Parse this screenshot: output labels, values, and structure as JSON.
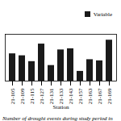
{
  "chart_data": {
    "type": "bar",
    "xlabel": "Station",
    "caption": "Number of drought events during study period in all",
    "categories": [
      "21-105",
      "21-109",
      "21-115",
      "21-127",
      "21-131",
      "21-133",
      "21-143",
      "21-157",
      "21-163",
      "21-167",
      "21-169"
    ],
    "series": [
      {
        "name": "Variable",
        "color": "#1a1a1a",
        "values": [
          7,
          6.5,
          5,
          9.5,
          4,
          8,
          8.3,
          2.5,
          5.5,
          5.2,
          10.5
        ]
      }
    ],
    "ylim": [
      0,
      12
    ],
    "tick_labels": "x",
    "legend": "upper right"
  }
}
